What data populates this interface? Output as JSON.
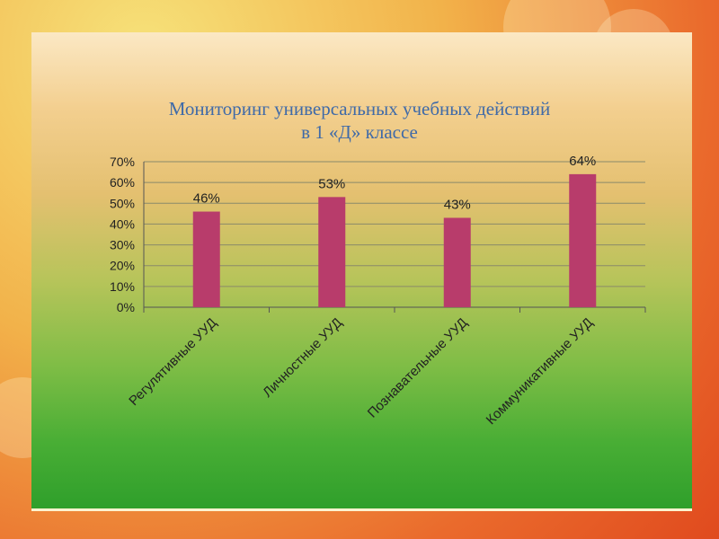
{
  "chart_data": {
    "type": "bar",
    "title_line1": "Мониторинг универсальных учебных действий",
    "title_line2": "в 1 «Д» классе",
    "categories": [
      "Регулятивные УУД",
      "Личностные УУД",
      "Познавательные УУД",
      "Коммуникативные УУД"
    ],
    "values": [
      46,
      53,
      43,
      64
    ],
    "value_labels": [
      "46%",
      "53%",
      "43%",
      "64%"
    ],
    "y_ticks": [
      "0%",
      "10%",
      "20%",
      "30%",
      "40%",
      "50%",
      "60%",
      "70%"
    ],
    "ylim": [
      0,
      70
    ],
    "grid": true,
    "legend": "none",
    "bar_color": "#b83c6b",
    "grid_color": "#8a8a6a"
  }
}
